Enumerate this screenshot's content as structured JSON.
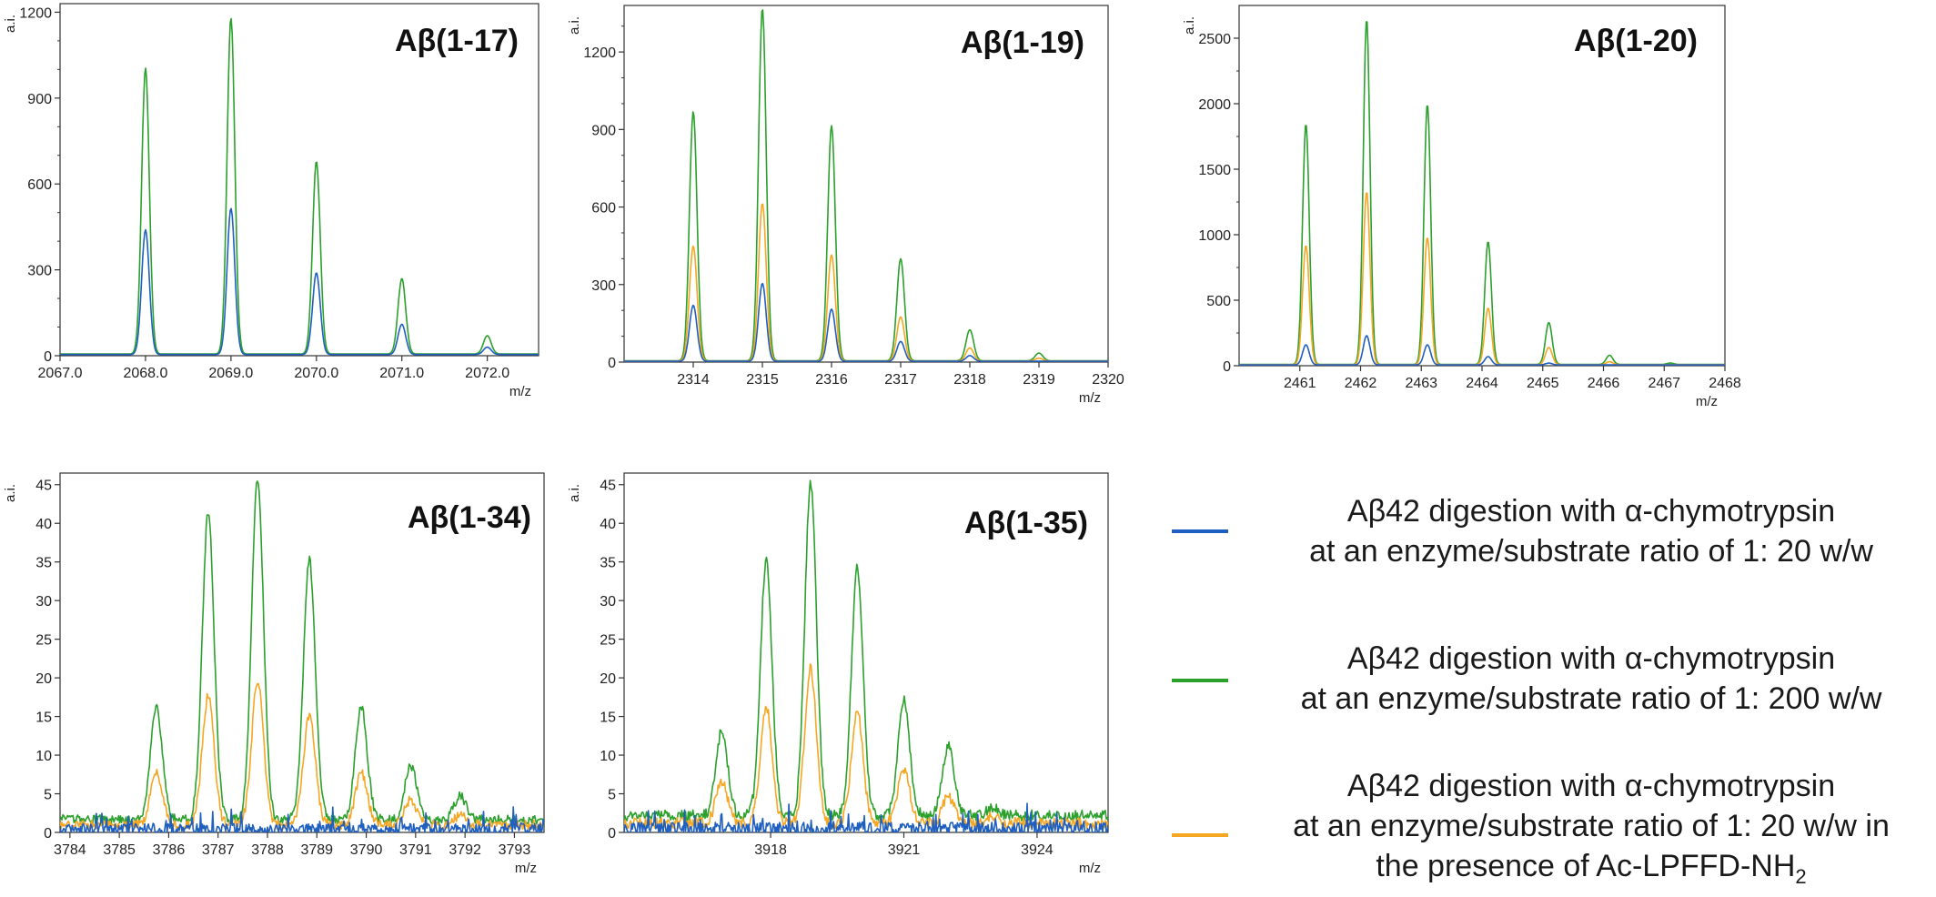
{
  "legend": {
    "items": [
      {
        "color": "#1f5fbf",
        "line1": "Aβ42 digestion with α-chymotrypsin",
        "line2": "at an enzyme/substrate ratio of 1: 20 w/w",
        "line3": ""
      },
      {
        "color": "#2ca02c",
        "line1": "Aβ42 digestion with α-chymotrypsin",
        "line2": "at an enzyme/substrate ratio of 1: 200 w/w",
        "line3": ""
      },
      {
        "color": "#f5a623",
        "line1": "Aβ42 digestion with α-chymotrypsin",
        "line2": "at an enzyme/substrate ratio of 1: 20 w/w in",
        "line3": "the presence of Ac-LPFFD-NH",
        "line3_sub": "2"
      }
    ]
  },
  "chart_data": [
    {
      "type": "line",
      "title": "Aβ(1-17)",
      "xlabel": "m/z",
      "ylabel": "a.i.",
      "xlim": [
        2067.0,
        2072.6
      ],
      "ylim": [
        0,
        1230
      ],
      "xticks": [
        2067.0,
        2068.0,
        2069.0,
        2070.0,
        2071.0,
        2072.0
      ],
      "xtick_labels": [
        "2067.0",
        "2068.0",
        "2069.0",
        "2070.0",
        "2071.0",
        "2072.0"
      ],
      "yticks": [
        0,
        300,
        600,
        900,
        1200
      ],
      "yticks_minor": [
        100,
        200,
        400,
        500,
        700,
        800,
        1000,
        1100
      ],
      "peak_width": 0.045,
      "noise": 0,
      "series": [
        {
          "color": "#2ca02c",
          "baseline": 6,
          "peaks": [
            [
              2068.0,
              1005
            ],
            [
              2069.0,
              1180
            ],
            [
              2070.0,
              680
            ],
            [
              2071.0,
              270
            ],
            [
              2072.0,
              70
            ]
          ]
        },
        {
          "color": "#1f5fbf",
          "baseline": 4,
          "peaks": [
            [
              2068.0,
              440
            ],
            [
              2069.0,
              515
            ],
            [
              2070.0,
              290
            ],
            [
              2071.0,
              110
            ],
            [
              2072.0,
              30
            ]
          ]
        }
      ]
    },
    {
      "type": "line",
      "title": "Aβ(1-19)",
      "xlabel": "m/z",
      "ylabel": "a.i.",
      "xlim": [
        2313.0,
        2320.0
      ],
      "ylim": [
        0,
        1380
      ],
      "xticks": [
        2314,
        2315,
        2316,
        2317,
        2318,
        2319,
        2320
      ],
      "xtick_labels": [
        "2314",
        "2315",
        "2316",
        "2317",
        "2318",
        "2319",
        "2320"
      ],
      "yticks": [
        0,
        300,
        600,
        900,
        1200
      ],
      "yticks_minor": [
        100,
        200,
        400,
        500,
        700,
        800,
        1000,
        1100,
        1300
      ],
      "peak_width": 0.055,
      "noise": 0,
      "series": [
        {
          "color": "#2ca02c",
          "baseline": 5,
          "peaks": [
            [
              2314.0,
              970
            ],
            [
              2315.0,
              1370
            ],
            [
              2316.0,
              915
            ],
            [
              2317.0,
              400
            ],
            [
              2318.0,
              125
            ],
            [
              2319.0,
              35
            ]
          ]
        },
        {
          "color": "#f5a623",
          "baseline": 4,
          "peaks": [
            [
              2314.0,
              450
            ],
            [
              2315.0,
              615
            ],
            [
              2316.0,
              415
            ],
            [
              2317.0,
              175
            ],
            [
              2318.0,
              55
            ],
            [
              2319.0,
              15
            ]
          ]
        },
        {
          "color": "#1f5fbf",
          "baseline": 3,
          "peaks": [
            [
              2314.0,
              220
            ],
            [
              2315.0,
              305
            ],
            [
              2316.0,
              205
            ],
            [
              2317.0,
              80
            ],
            [
              2318.0,
              25
            ]
          ]
        }
      ]
    },
    {
      "type": "line",
      "title": "Aβ(1-20)",
      "xlabel": "m/z",
      "ylabel": "a.i.",
      "xlim": [
        2460.0,
        2468.0
      ],
      "ylim": [
        0,
        2750
      ],
      "xticks": [
        2461,
        2462,
        2463,
        2464,
        2465,
        2466,
        2467,
        2468
      ],
      "xtick_labels": [
        "2461",
        "2462",
        "2463",
        "2464",
        "2465",
        "2466",
        "2467",
        "2468"
      ],
      "yticks": [
        0,
        500,
        1000,
        1500,
        2000,
        2500
      ],
      "yticks_minor": [
        250,
        750,
        1250,
        1750,
        2250
      ],
      "peak_width": 0.055,
      "noise": 0,
      "series": [
        {
          "color": "#2ca02c",
          "baseline": 10,
          "peaks": [
            [
              2461.1,
              1850
            ],
            [
              2462.1,
              2650
            ],
            [
              2463.1,
              2000
            ],
            [
              2464.1,
              950
            ],
            [
              2465.1,
              330
            ],
            [
              2466.1,
              80
            ],
            [
              2467.1,
              20
            ]
          ]
        },
        {
          "color": "#f5a623",
          "baseline": 8,
          "peaks": [
            [
              2461.1,
              920
            ],
            [
              2462.1,
              1330
            ],
            [
              2463.1,
              980
            ],
            [
              2464.1,
              440
            ],
            [
              2465.1,
              140
            ],
            [
              2466.1,
              30
            ]
          ]
        },
        {
          "color": "#1f5fbf",
          "baseline": 6,
          "peaks": [
            [
              2461.1,
              160
            ],
            [
              2462.1,
              230
            ],
            [
              2463.1,
              160
            ],
            [
              2464.1,
              70
            ],
            [
              2465.1,
              20
            ]
          ]
        }
      ]
    },
    {
      "type": "line",
      "title": "Aβ(1-34)",
      "xlabel": "m/z",
      "ylabel": "a.i.",
      "xlim": [
        3783.8,
        3793.6
      ],
      "ylim": [
        0,
        46.5
      ],
      "xticks": [
        3784,
        3785,
        3786,
        3787,
        3788,
        3789,
        3790,
        3791,
        3792,
        3793
      ],
      "xtick_labels": [
        "3784",
        "3785",
        "3786",
        "3787",
        "3788",
        "3789",
        "3790",
        "3791",
        "3792",
        "3793"
      ],
      "yticks": [
        0,
        5,
        10,
        15,
        20,
        25,
        30,
        35,
        40,
        45
      ],
      "yticks_minor": [],
      "peak_width": 0.12,
      "noise": 1.2,
      "series": [
        {
          "color": "#2ca02c",
          "baseline": 1.5,
          "peaks": [
            [
              3785.75,
              16
            ],
            [
              3786.8,
              41
            ],
            [
              3787.8,
              45.5
            ],
            [
              3788.85,
              35
            ],
            [
              3789.9,
              16
            ],
            [
              3790.9,
              8.5
            ],
            [
              3791.9,
              4.5
            ]
          ]
        },
        {
          "color": "#f5a623",
          "baseline": 0.8,
          "peaks": [
            [
              3785.75,
              7.5
            ],
            [
              3786.8,
              17.5
            ],
            [
              3787.8,
              19.5
            ],
            [
              3788.85,
              15
            ],
            [
              3789.9,
              7.5
            ],
            [
              3790.9,
              4
            ],
            [
              3791.9,
              2
            ]
          ]
        },
        {
          "color": "#1f5fbf",
          "baseline": 0.2,
          "peaks": []
        }
      ]
    },
    {
      "type": "line",
      "title": "Aβ(1-35)",
      "xlabel": "m/z",
      "ylabel": "a.i.",
      "xlim": [
        3914.7,
        3925.6
      ],
      "ylim": [
        0,
        46.5
      ],
      "xticks": [
        3918,
        3921,
        3924
      ],
      "xtick_labels": [
        "3918",
        "3921",
        "3924"
      ],
      "yticks": [
        0,
        5,
        10,
        15,
        20,
        25,
        30,
        35,
        40,
        45
      ],
      "yticks_minor": [],
      "peak_width": 0.13,
      "noise": 1.4,
      "series": [
        {
          "color": "#2ca02c",
          "baseline": 2,
          "peaks": [
            [
              3916.9,
              13
            ],
            [
              3917.9,
              35
            ],
            [
              3918.9,
              45
            ],
            [
              3919.95,
              34
            ],
            [
              3921.0,
              17
            ],
            [
              3922.0,
              11
            ],
            [
              3923.0,
              3
            ]
          ]
        },
        {
          "color": "#f5a623",
          "baseline": 1,
          "peaks": [
            [
              3916.9,
              6.5
            ],
            [
              3917.9,
              16
            ],
            [
              3918.9,
              21
            ],
            [
              3919.95,
              15.5
            ],
            [
              3921.0,
              8
            ],
            [
              3922.0,
              4.5
            ],
            [
              3923.0,
              2
            ]
          ]
        },
        {
          "color": "#1f5fbf",
          "baseline": 0.2,
          "peaks": []
        }
      ]
    }
  ]
}
